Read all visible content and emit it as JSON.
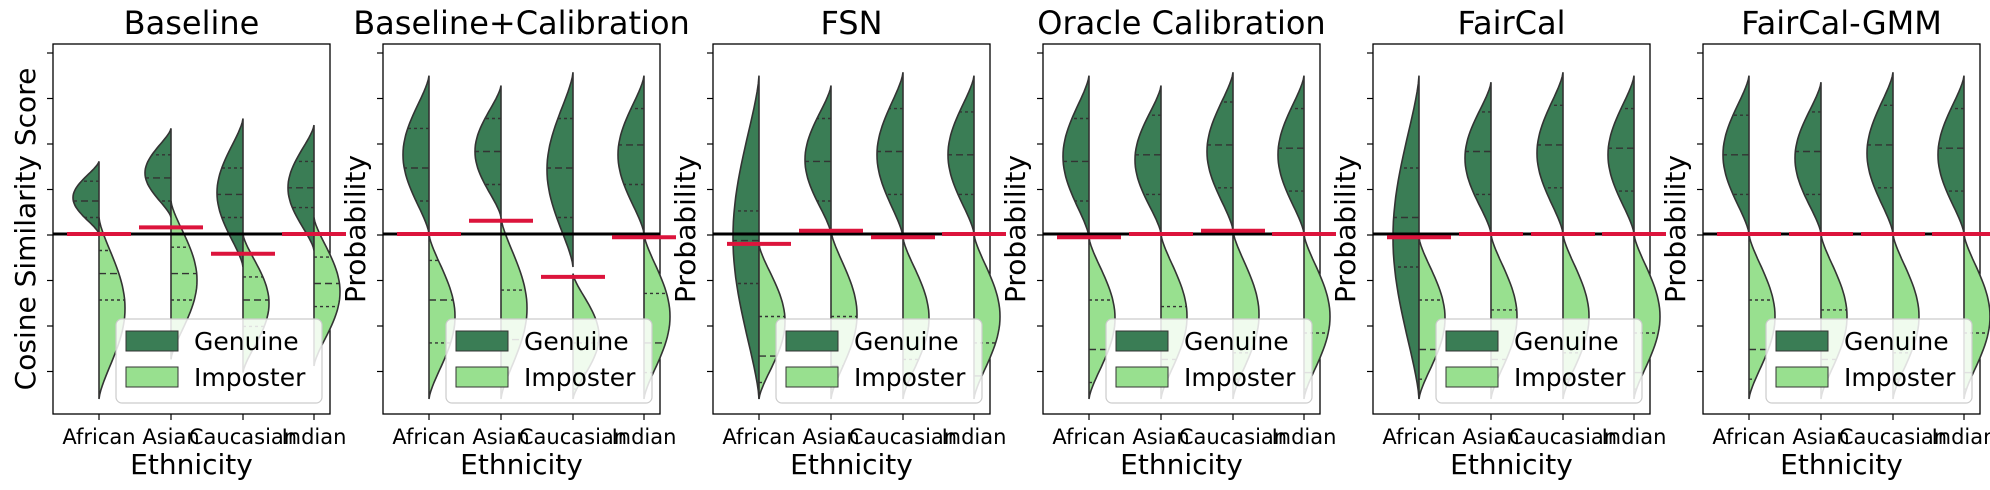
{
  "chart_data": [
    {
      "type": "violin",
      "title": "Baseline",
      "xlabel": "Ethnicity",
      "ylabel": "Cosine Similarity Score",
      "categories": [
        "African",
        "Asian",
        "Caucasian",
        "Indian"
      ],
      "legend": {
        "position": "lower-right",
        "entries": [
          "Genuine",
          "Imposter"
        ]
      },
      "threshold": 0.5,
      "group_thresholds": [
        0.5,
        0.52,
        0.44,
        0.5
      ],
      "violins": [
        {
          "genuine": {
            "lo": 0.5,
            "hi": 0.72,
            "q": [
              0.55,
              0.6,
              0.66
            ]
          },
          "imposter": {
            "lo": 0.0,
            "hi": 0.55,
            "q": [
              0.3,
              0.38,
              0.45
            ]
          }
        },
        {
          "genuine": {
            "lo": 0.55,
            "hi": 0.82,
            "q": [
              0.6,
              0.67,
              0.74
            ]
          },
          "imposter": {
            "lo": 0.12,
            "hi": 0.6,
            "q": [
              0.3,
              0.38,
              0.46
            ]
          }
        },
        {
          "genuine": {
            "lo": 0.4,
            "hi": 0.85,
            "q": [
              0.55,
              0.62,
              0.7
            ]
          },
          "imposter": {
            "lo": 0.08,
            "hi": 0.5,
            "q": [
              0.22,
              0.3,
              0.37
            ]
          }
        },
        {
          "genuine": {
            "lo": 0.45,
            "hi": 0.83,
            "q": [
              0.58,
              0.64,
              0.72
            ]
          },
          "imposter": {
            "lo": 0.1,
            "hi": 0.55,
            "q": [
              0.28,
              0.35,
              0.43
            ]
          }
        }
      ]
    },
    {
      "type": "violin",
      "title": "Baseline+Calibration",
      "xlabel": "Ethnicity",
      "ylabel": "Probability",
      "categories": [
        "African",
        "Asian",
        "Caucasian",
        "Indian"
      ],
      "legend": {
        "position": "lower-right",
        "entries": [
          "Genuine",
          "Imposter"
        ]
      },
      "threshold": 0.5,
      "group_thresholds": [
        0.5,
        0.54,
        0.37,
        0.49
      ],
      "violins": [
        {
          "genuine": {
            "lo": 0.5,
            "hi": 0.98,
            "q": [
              0.6,
              0.7,
              0.82
            ]
          },
          "imposter": {
            "lo": 0.0,
            "hi": 0.5,
            "q": [
              0.17,
              0.3,
              0.42
            ]
          }
        },
        {
          "genuine": {
            "lo": 0.55,
            "hi": 0.95,
            "q": [
              0.65,
              0.75,
              0.85
            ]
          },
          "imposter": {
            "lo": 0.0,
            "hi": 0.55,
            "q": [
              0.08,
              0.18,
              0.33
            ]
          }
        },
        {
          "genuine": {
            "lo": 0.4,
            "hi": 0.99,
            "q": [
              0.55,
              0.7,
              0.85
            ]
          },
          "imposter": {
            "lo": 0.0,
            "hi": 0.38,
            "q": [
              0.03,
              0.08,
              0.17
            ]
          }
        },
        {
          "genuine": {
            "lo": 0.5,
            "hi": 0.98,
            "q": [
              0.65,
              0.77,
              0.88
            ]
          },
          "imposter": {
            "lo": 0.0,
            "hi": 0.5,
            "q": [
              0.08,
              0.17,
              0.32
            ]
          }
        }
      ]
    },
    {
      "type": "violin",
      "title": "FSN",
      "xlabel": "Ethnicity",
      "ylabel": "Probability",
      "categories": [
        "African",
        "Asian",
        "Caucasian",
        "Indian"
      ],
      "legend": {
        "position": "lower-right",
        "entries": [
          "Genuine",
          "Imposter"
        ]
      },
      "threshold": 0.5,
      "group_thresholds": [
        0.47,
        0.51,
        0.49,
        0.5
      ],
      "violins": [
        {
          "genuine": {
            "lo": 0.0,
            "hi": 0.98,
            "q": [
              0.35,
              0.48,
              0.57
            ]
          },
          "imposter": {
            "lo": 0.0,
            "hi": 0.47,
            "q": [
              0.05,
              0.13,
              0.25
            ]
          }
        },
        {
          "genuine": {
            "lo": 0.5,
            "hi": 0.95,
            "q": [
              0.6,
              0.72,
              0.85
            ]
          },
          "imposter": {
            "lo": 0.0,
            "hi": 0.51,
            "q": [
              0.03,
              0.1,
              0.25
            ]
          }
        },
        {
          "genuine": {
            "lo": 0.49,
            "hi": 0.99,
            "q": [
              0.62,
              0.75,
              0.88
            ]
          },
          "imposter": {
            "lo": 0.0,
            "hi": 0.49,
            "q": [
              0.02,
              0.05,
              0.12
            ]
          }
        },
        {
          "genuine": {
            "lo": 0.5,
            "hi": 0.98,
            "q": [
              0.62,
              0.74,
              0.87
            ]
          },
          "imposter": {
            "lo": 0.0,
            "hi": 0.5,
            "q": [
              0.02,
              0.07,
              0.17
            ]
          }
        }
      ]
    },
    {
      "type": "violin",
      "title": "Oracle Calibration",
      "xlabel": "Ethnicity",
      "ylabel": "Probability",
      "categories": [
        "African",
        "Asian",
        "Caucasian",
        "Indian"
      ],
      "legend": {
        "position": "lower-right",
        "entries": [
          "Genuine",
          "Imposter"
        ]
      },
      "threshold": 0.5,
      "group_thresholds": [
        0.49,
        0.5,
        0.51,
        0.5
      ],
      "violins": [
        {
          "genuine": {
            "lo": 0.49,
            "hi": 0.98,
            "q": [
              0.6,
              0.72,
              0.85
            ]
          },
          "imposter": {
            "lo": 0.0,
            "hi": 0.49,
            "q": [
              0.05,
              0.15,
              0.3
            ]
          }
        },
        {
          "genuine": {
            "lo": 0.5,
            "hi": 0.95,
            "q": [
              0.62,
              0.74,
              0.86
            ]
          },
          "imposter": {
            "lo": 0.0,
            "hi": 0.5,
            "q": [
              0.04,
              0.12,
              0.28
            ]
          }
        },
        {
          "genuine": {
            "lo": 0.51,
            "hi": 0.99,
            "q": [
              0.64,
              0.77,
              0.9
            ]
          },
          "imposter": {
            "lo": 0.0,
            "hi": 0.51,
            "q": [
              0.02,
              0.06,
              0.14
            ]
          }
        },
        {
          "genuine": {
            "lo": 0.5,
            "hi": 0.98,
            "q": [
              0.63,
              0.76,
              0.88
            ]
          },
          "imposter": {
            "lo": 0.0,
            "hi": 0.5,
            "q": [
              0.03,
              0.08,
              0.2
            ]
          }
        }
      ]
    },
    {
      "type": "violin",
      "title": "FairCal",
      "xlabel": "Ethnicity",
      "ylabel": "Probability",
      "categories": [
        "African",
        "Asian",
        "Caucasian",
        "Indian"
      ],
      "legend": {
        "position": "lower-right",
        "entries": [
          "Genuine",
          "Imposter"
        ]
      },
      "threshold": 0.5,
      "group_thresholds": [
        0.49,
        0.5,
        0.5,
        0.5
      ],
      "violins": [
        {
          "genuine": {
            "lo": 0.0,
            "hi": 0.98,
            "q": [
              0.4,
              0.55,
              0.7
            ]
          },
          "imposter": {
            "lo": 0.0,
            "hi": 0.49,
            "q": [
              0.06,
              0.15,
              0.3
            ]
          }
        },
        {
          "genuine": {
            "lo": 0.5,
            "hi": 0.96,
            "q": [
              0.62,
              0.75,
              0.87
            ]
          },
          "imposter": {
            "lo": 0.0,
            "hi": 0.5,
            "q": [
              0.04,
              0.12,
              0.27
            ]
          }
        },
        {
          "genuine": {
            "lo": 0.5,
            "hi": 0.99,
            "q": [
              0.64,
              0.77,
              0.89
            ]
          },
          "imposter": {
            "lo": 0.0,
            "hi": 0.5,
            "q": [
              0.02,
              0.06,
              0.14
            ]
          }
        },
        {
          "genuine": {
            "lo": 0.5,
            "hi": 0.98,
            "q": [
              0.63,
              0.76,
              0.88
            ]
          },
          "imposter": {
            "lo": 0.0,
            "hi": 0.5,
            "q": [
              0.03,
              0.08,
              0.2
            ]
          }
        }
      ]
    },
    {
      "type": "violin",
      "title": "FairCal-GMM",
      "xlabel": "Ethnicity",
      "ylabel": "Probability",
      "categories": [
        "African",
        "Asian",
        "Caucasian",
        "Indian"
      ],
      "legend": {
        "position": "lower-right",
        "entries": [
          "Genuine",
          "Imposter"
        ]
      },
      "threshold": 0.5,
      "group_thresholds": [
        0.5,
        0.5,
        0.5,
        0.5
      ],
      "violins": [
        {
          "genuine": {
            "lo": 0.5,
            "hi": 0.98,
            "q": [
              0.62,
              0.74,
              0.86
            ]
          },
          "imposter": {
            "lo": 0.0,
            "hi": 0.5,
            "q": [
              0.06,
              0.15,
              0.3
            ]
          }
        },
        {
          "genuine": {
            "lo": 0.5,
            "hi": 0.96,
            "q": [
              0.62,
              0.75,
              0.87
            ]
          },
          "imposter": {
            "lo": 0.0,
            "hi": 0.5,
            "q": [
              0.04,
              0.12,
              0.27
            ]
          }
        },
        {
          "genuine": {
            "lo": 0.5,
            "hi": 0.99,
            "q": [
              0.64,
              0.77,
              0.89
            ]
          },
          "imposter": {
            "lo": 0.0,
            "hi": 0.5,
            "q": [
              0.02,
              0.06,
              0.14
            ]
          }
        },
        {
          "genuine": {
            "lo": 0.5,
            "hi": 0.98,
            "q": [
              0.63,
              0.76,
              0.88
            ]
          },
          "imposter": {
            "lo": 0.0,
            "hi": 0.5,
            "q": [
              0.03,
              0.08,
              0.2
            ]
          }
        }
      ]
    }
  ],
  "colors": {
    "genuine": "#3a7d55",
    "imposter": "#98e08f",
    "threshold": "#000000",
    "group_threshold": "#dc143c",
    "outline": "#333333"
  }
}
